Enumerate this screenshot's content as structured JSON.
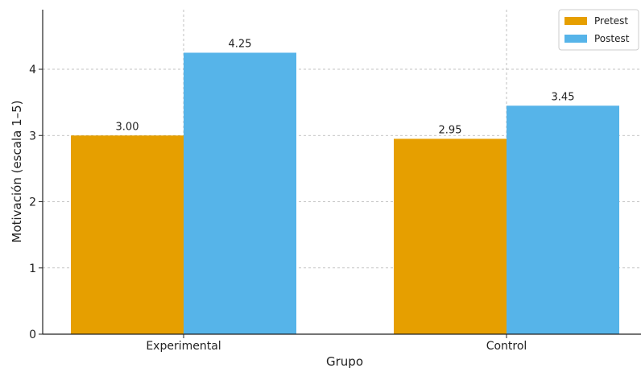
{
  "chart_data": {
    "type": "bar",
    "title": "",
    "xlabel": "Grupo",
    "ylabel": "Motivación (escala 1–5)",
    "categories": [
      "Experimental",
      "Control"
    ],
    "series": [
      {
        "name": "Pretest",
        "values": [
          3.0,
          2.95
        ],
        "labels": [
          "3.00",
          "2.95"
        ],
        "color": "#E69F00"
      },
      {
        "name": "Postest",
        "values": [
          4.25,
          3.45
        ],
        "labels": [
          "4.25",
          "3.45"
        ],
        "color": "#56B4E9"
      }
    ],
    "ylim": [
      0,
      4.9
    ],
    "yticks": [
      0,
      1,
      2,
      3,
      4
    ],
    "ytick_labels": [
      "0",
      "1",
      "2",
      "3",
      "4"
    ],
    "grid": true,
    "legend_position": "top-right"
  }
}
